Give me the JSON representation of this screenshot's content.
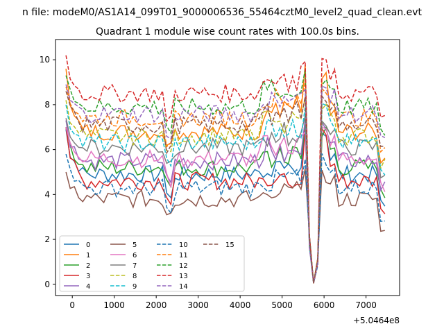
{
  "chart_data": {
    "type": "line",
    "suptitle": "n file: modeM0/AS1A14_099T01_9000006536_55464cztM0_level2_quad_clean.evt",
    "title": "Quadrant 1 module wise count rates with 100.0s bins.",
    "xlabel": "",
    "ylabel": "",
    "offset_text": "+5.0464e8",
    "xlim": [
      -400,
      7800
    ],
    "ylim": [
      -0.5,
      10.9
    ],
    "xticks": [
      0,
      1000,
      2000,
      3000,
      4000,
      5000,
      6000,
      7000
    ],
    "yticks": [
      0,
      2,
      4,
      6,
      8,
      10
    ],
    "grid": false,
    "legend": {
      "placement": "lower-left",
      "columns": 4
    },
    "x_start": -150,
    "x_step": 100,
    "series": [
      {
        "name": "0",
        "color": "#1f77b4",
        "dash": "solid",
        "base": 4.9,
        "start": 6.9,
        "bump": 0.2
      },
      {
        "name": "1",
        "color": "#ff7f0e",
        "dash": "solid",
        "base": 6.8,
        "start": 9.6,
        "bump": 0.8
      },
      {
        "name": "2",
        "color": "#2ca02c",
        "dash": "solid",
        "base": 5.2,
        "start": 7.0,
        "bump": 0.4
      },
      {
        "name": "3",
        "color": "#d62728",
        "dash": "solid",
        "base": 4.6,
        "start": 7.0,
        "bump": 0.1
      },
      {
        "name": "4",
        "color": "#9467bd",
        "dash": "solid",
        "base": 5.5,
        "start": 7.3,
        "bump": 0.5
      },
      {
        "name": "5",
        "color": "#8c564b",
        "dash": "solid",
        "base": 3.8,
        "start": 5.0,
        "bump": 0.2
      },
      {
        "name": "6",
        "color": "#e377c2",
        "dash": "solid",
        "base": 5.6,
        "start": 7.0,
        "bump": 0.5
      },
      {
        "name": "7",
        "color": "#7f7f7f",
        "dash": "solid",
        "base": 6.1,
        "start": 7.4,
        "bump": 0.4
      },
      {
        "name": "8",
        "color": "#bcbd22",
        "dash": "dashed",
        "base": 6.6,
        "start": 8.2,
        "bump": 0.6
      },
      {
        "name": "9",
        "color": "#17becf",
        "dash": "dashed",
        "base": 6.3,
        "start": 8.0,
        "bump": 0.6
      },
      {
        "name": "10",
        "color": "#1f77b4",
        "dash": "dashed",
        "base": 4.3,
        "start": 5.8,
        "bump": 0.2
      },
      {
        "name": "11",
        "color": "#ff7f0e",
        "dash": "dashed",
        "base": 7.4,
        "start": 8.8,
        "bump": 0.7
      },
      {
        "name": "12",
        "color": "#2ca02c",
        "dash": "dashed",
        "base": 7.9,
        "start": 9.3,
        "bump": 0.6
      },
      {
        "name": "13",
        "color": "#d62728",
        "dash": "dashed",
        "base": 8.5,
        "start": 10.2,
        "bump": 0.6
      },
      {
        "name": "14",
        "color": "#9467bd",
        "dash": "dashed",
        "base": 7.6,
        "start": 8.9,
        "bump": 0.5
      },
      {
        "name": "15",
        "color": "#8c564b",
        "dash": "dashed",
        "base": 7.1,
        "start": 8.6,
        "bump": 0.5
      }
    ]
  }
}
